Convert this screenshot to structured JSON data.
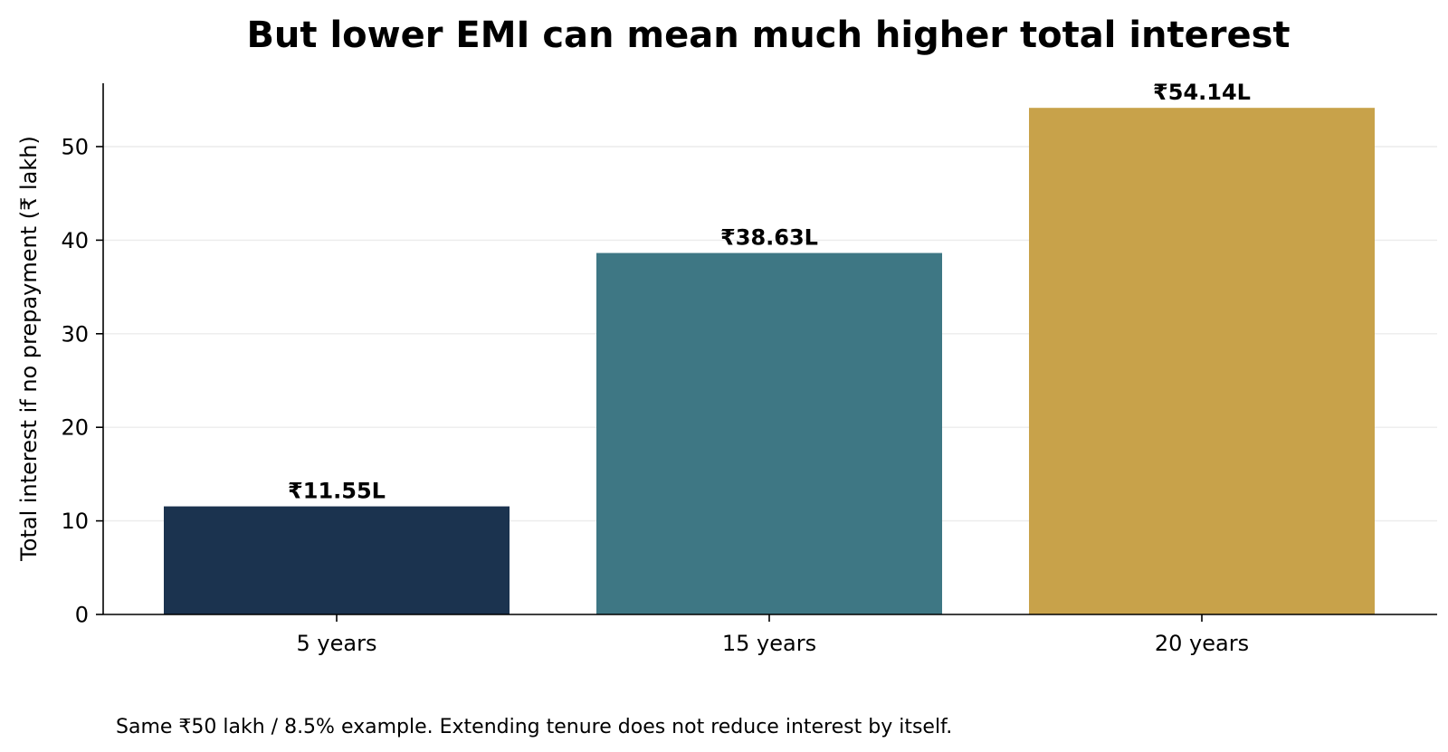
{
  "chart_data": {
    "type": "bar",
    "title": "But lower EMI can mean much higher total interest",
    "xlabel": "",
    "ylabel": "Total interest if no prepayment (₹ lakh)",
    "categories": [
      "5 years",
      "15 years",
      "20 years"
    ],
    "values": [
      11.55,
      38.63,
      54.14
    ],
    "data_labels": [
      "₹11.55L",
      "₹38.63L",
      "₹54.14L"
    ],
    "colors": [
      "#1b334f",
      "#3e7784",
      "#c8a24a"
    ],
    "ylim": [
      0,
      57
    ],
    "yticks": [
      0,
      10,
      20,
      30,
      40,
      50
    ],
    "grid": "horizontal",
    "footnote": "Same ₹50 lakh / 8.5% example. Extending tenure does not reduce interest by itself."
  }
}
